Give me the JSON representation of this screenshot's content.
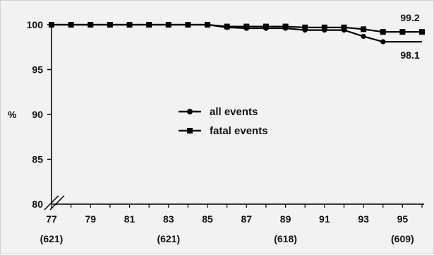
{
  "chart_data": {
    "type": "line",
    "ylabel": "%",
    "ylim": [
      80,
      100
    ],
    "yticks": [
      "80",
      "85",
      "90",
      "95",
      "100"
    ],
    "x": [
      77,
      78,
      79,
      80,
      81,
      82,
      83,
      84,
      85,
      86,
      87,
      88,
      89,
      90,
      91,
      92,
      93,
      94,
      95,
      96
    ],
    "xlim": [
      77,
      96
    ],
    "xticks": [
      "77",
      "79",
      "81",
      "83",
      "85",
      "87",
      "89",
      "91",
      "93",
      "95"
    ],
    "sample_sizes": [
      {
        "x": 77,
        "label": "(621)"
      },
      {
        "x": 83,
        "label": "(621)"
      },
      {
        "x": 89,
        "label": "(618)"
      },
      {
        "x": 95,
        "label": "(609)"
      }
    ],
    "series": [
      {
        "name": "all events",
        "marker": "circle",
        "values": [
          100,
          100,
          100,
          100,
          100,
          100,
          100,
          100,
          100,
          99.7,
          99.6,
          99.6,
          99.6,
          99.4,
          99.4,
          99.4,
          98.7,
          98.1,
          null,
          null
        ],
        "end_value": 98.1,
        "end_label": "98.1"
      },
      {
        "name": "fatal events",
        "marker": "square",
        "values": [
          100,
          100,
          100,
          100,
          100,
          100,
          100,
          100,
          100,
          99.8,
          99.8,
          99.8,
          99.8,
          99.7,
          99.7,
          99.7,
          99.5,
          99.2,
          99.2,
          99.2
        ],
        "end_value": 99.2,
        "end_label": "99.2"
      }
    ],
    "axis_break": true,
    "grid": false,
    "legend_position": "center"
  }
}
